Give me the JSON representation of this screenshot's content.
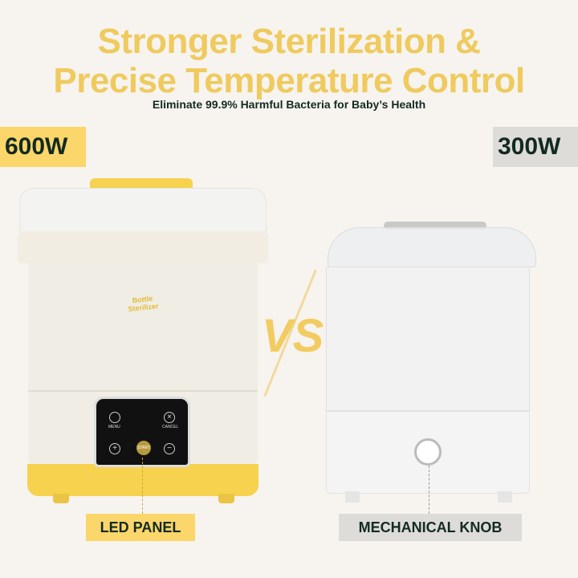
{
  "headline": {
    "line1": "Stronger Sterilization &",
    "line2": "Precise Temperature Control"
  },
  "subtitle": "Eliminate 99.9% Harmful Bacteria for Baby’s Health",
  "left": {
    "power": "600W",
    "label": "LED PANEL",
    "logo": "Bottle Sterilizer",
    "panel": {
      "menu": "MENU",
      "cancel": "CANCEL",
      "start": "START",
      "plus": "+",
      "minus": "−"
    },
    "accent": "#f6d24f"
  },
  "right": {
    "power": "300W",
    "label": "MECHANICAL KNOB"
  },
  "vs": "VS",
  "colors": {
    "headline": "#efca5e",
    "text": "#132a22",
    "yellow": "#fbd66a",
    "gray": "#dedcd8",
    "background": "#f7f4ef"
  }
}
